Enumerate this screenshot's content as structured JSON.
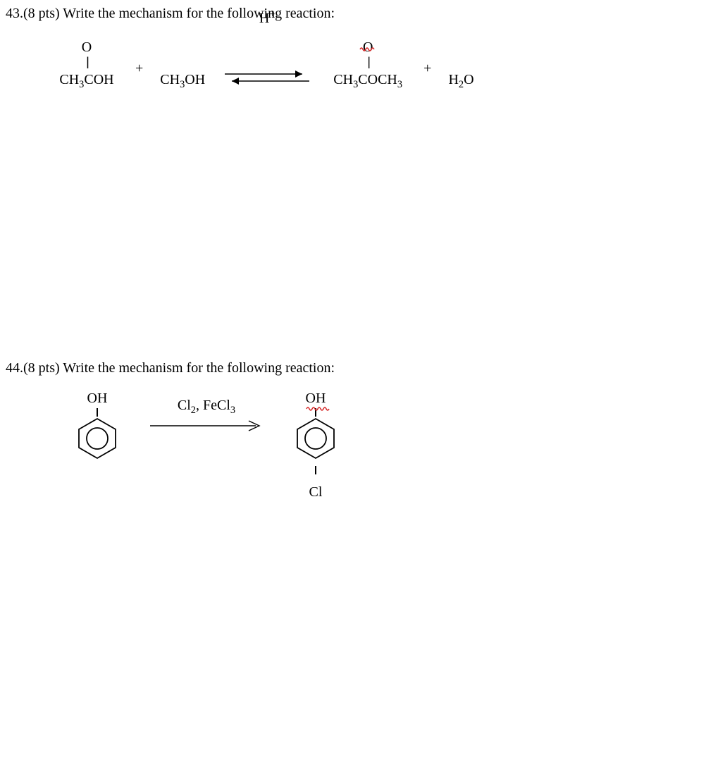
{
  "q43": {
    "prompt": "43.(8 pts) Write the mechanism for the following reaction:",
    "reagent1_o": "O",
    "reagent1_base": "CH<sub>3</sub>COH",
    "plus": "+",
    "reagent2": "CH<sub>3</sub>OH",
    "arrow_label": "H<sup>+</sup>",
    "product1_o": "O",
    "product1_base": "CH<sub>3</sub>COCH<sub>3</sub>",
    "product2": "H<sub>2</sub>O",
    "squiggle_color": "#d62a2a"
  },
  "q44": {
    "prompt": "44.(8 pts) Write the mechanism for the following reaction:",
    "start_label": "OH",
    "reagents": "Cl<sub>2</sub>, FeCl<sub>3</sub>",
    "product_label": "OH",
    "product_sub": "Cl",
    "squiggle_color": "#d62a2a"
  },
  "style": {
    "font": "Times New Roman",
    "fontsize_pt": 15,
    "text_color": "#000000",
    "background": "#ffffff"
  }
}
